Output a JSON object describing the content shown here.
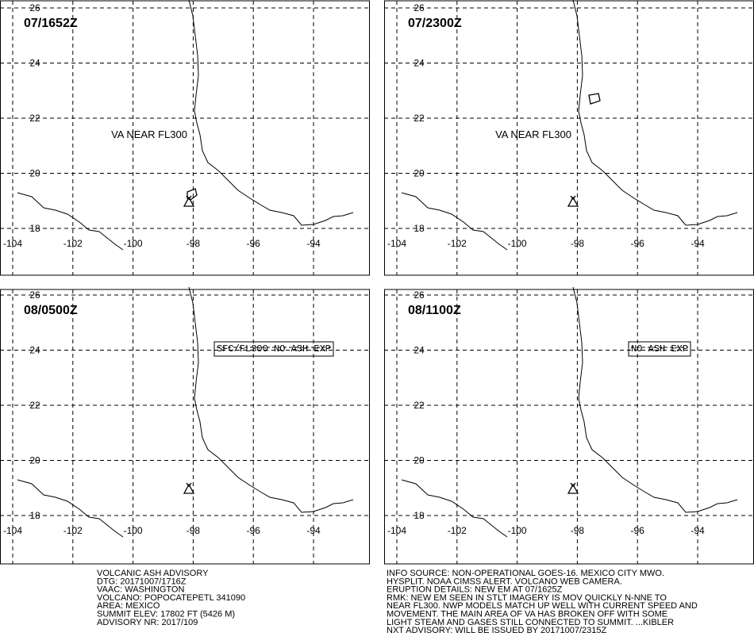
{
  "map": {
    "lon_ticks": [
      -104,
      -102,
      -100,
      -98,
      -96,
      -94
    ],
    "lat_ticks": [
      18,
      20,
      22,
      24,
      26
    ]
  },
  "panels": [
    {
      "time": "07/1652Z",
      "annotation": "VA NEAR FL300"
    },
    {
      "time": "07/2300Z",
      "annotation": "VA NEAR FL300"
    },
    {
      "time": "08/0500Z",
      "annotation": "SFC/FL300 NO ASH EXP"
    },
    {
      "time": "08/1100Z",
      "annotation": "NO ASH EXP"
    }
  ],
  "advisory_left": [
    "VOLCANIC ASH ADVISORY",
    "DTG: 20171007/1716Z",
    "VAAC: WASHINGTON",
    "VOLCANO: POPOCATEPETL 341090",
    "AREA: MEXICO",
    "SUMMIT ELEV: 17802 FT (5426 M)",
    "ADVISORY NR: 2017/109"
  ],
  "advisory_right": [
    "INFO SOURCE: NON-OPERATIONAL GOES-16. MEXICO CITY MWO.",
    "HYSPLIT. NOAA CIMSS ALERT. VOLCANO WEB CAMERA.",
    "ERUPTION DETAILS: NEW EM AT 07/1625Z",
    "RMK: NEW EM SEEN IN STLT IMAGERY IS MOV QUICKLY N-NNE TO",
    "NEAR FL300. NWP MODELS MATCH UP WELL WITH CURRENT SPEED AND",
    "MOVEMENT. THE MAIN AREA OF VA HAS BROKEN OFF WITH SOME",
    "LIGHT STEAM AND GASES STILL CONNECTED TO SUMMIT. ...KIBLER",
    "NXT ADVISORY: WILL BE ISSUED BY 20171007/2315Z"
  ]
}
